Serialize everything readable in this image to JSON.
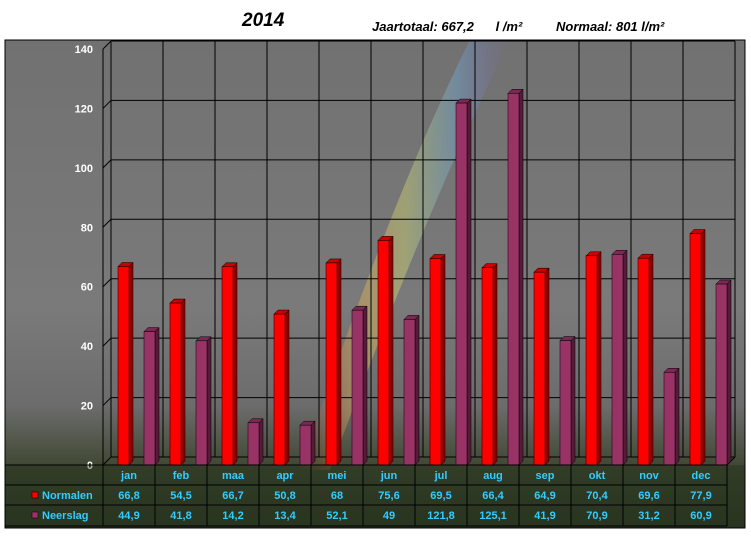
{
  "header": {
    "title": "2014",
    "year_total_text": "Jaartotaal: 667,2      l /m²",
    "normal_text": "Normaal: 801 l/m²"
  },
  "chart_data": {
    "type": "bar",
    "categories": [
      "jan",
      "feb",
      "maa",
      "apr",
      "mei",
      "jun",
      "jul",
      "aug",
      "sep",
      "okt",
      "nov",
      "dec"
    ],
    "series": [
      {
        "name": "Normalen",
        "values": [
          66.8,
          54.5,
          66.7,
          50.8,
          68,
          75.6,
          69.5,
          66.4,
          64.9,
          70.4,
          69.6,
          77.9
        ],
        "color": "#ff0000",
        "labels": [
          "66,8",
          "54,5",
          "66,7",
          "50,8",
          "68",
          "75,6",
          "69,5",
          "66,4",
          "64,9",
          "70,4",
          "69,6",
          "77,9"
        ]
      },
      {
        "name": "Neerslag",
        "values": [
          44.9,
          41.8,
          14.2,
          13.4,
          52.1,
          49,
          121.8,
          125.1,
          41.9,
          70.9,
          31.2,
          60.9
        ],
        "color": "#993366",
        "labels": [
          "44,9",
          "41,8",
          "14,2",
          "13,4",
          "52,1",
          "49",
          "121,8",
          "125,1",
          "41,9",
          "70,9",
          "31,2",
          "60,9"
        ]
      }
    ],
    "yticks": [
      "0",
      "20",
      "40",
      "60",
      "80",
      "100",
      "120",
      "140"
    ],
    "ylim": [
      0,
      140
    ],
    "grid": true,
    "legend": "data-table-left",
    "colors": {
      "axis_text": "#ffffff",
      "category_text": "#33ccff",
      "table_text": "#33ccff"
    }
  }
}
